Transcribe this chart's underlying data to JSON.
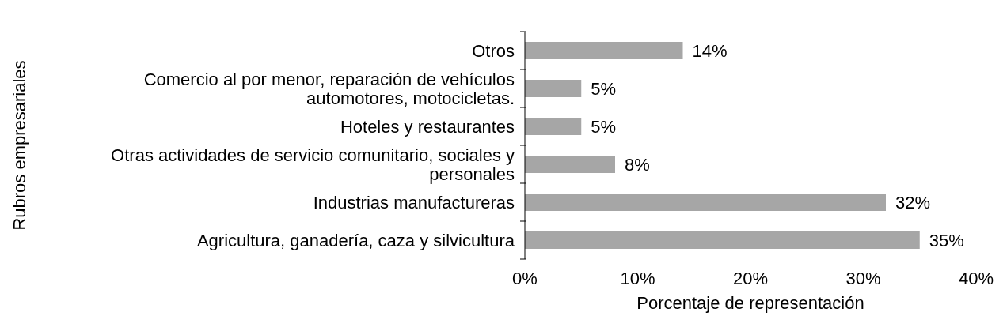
{
  "chart_data": {
    "type": "bar",
    "orientation": "horizontal",
    "xlabel": "Porcentaje de representación",
    "ylabel": "Rubros empresariales",
    "categories": [
      "Otros",
      "Comercio al por menor, reparación de vehículos automotores, motocicletas.",
      "Hoteles y restaurantes",
      "Otras actividades de servicio comunitario, sociales y personales",
      "Industrias manufactureras",
      "Agricultura, ganadería, caza y silvicultura"
    ],
    "values": [
      14,
      5,
      5,
      8,
      32,
      35
    ],
    "value_labels": [
      "14%",
      "5%",
      "5%",
      "8%",
      "32%",
      "35%"
    ],
    "color": "#a6a6a6",
    "xlim": [
      0,
      40
    ],
    "xticks": [
      {
        "value": 0,
        "label": "0%"
      },
      {
        "value": 10,
        "label": "10%"
      },
      {
        "value": 20,
        "label": "20%"
      },
      {
        "value": 30,
        "label": "30%"
      },
      {
        "value": 40,
        "label": "40%"
      }
    ],
    "grid": false,
    "legend": false
  }
}
